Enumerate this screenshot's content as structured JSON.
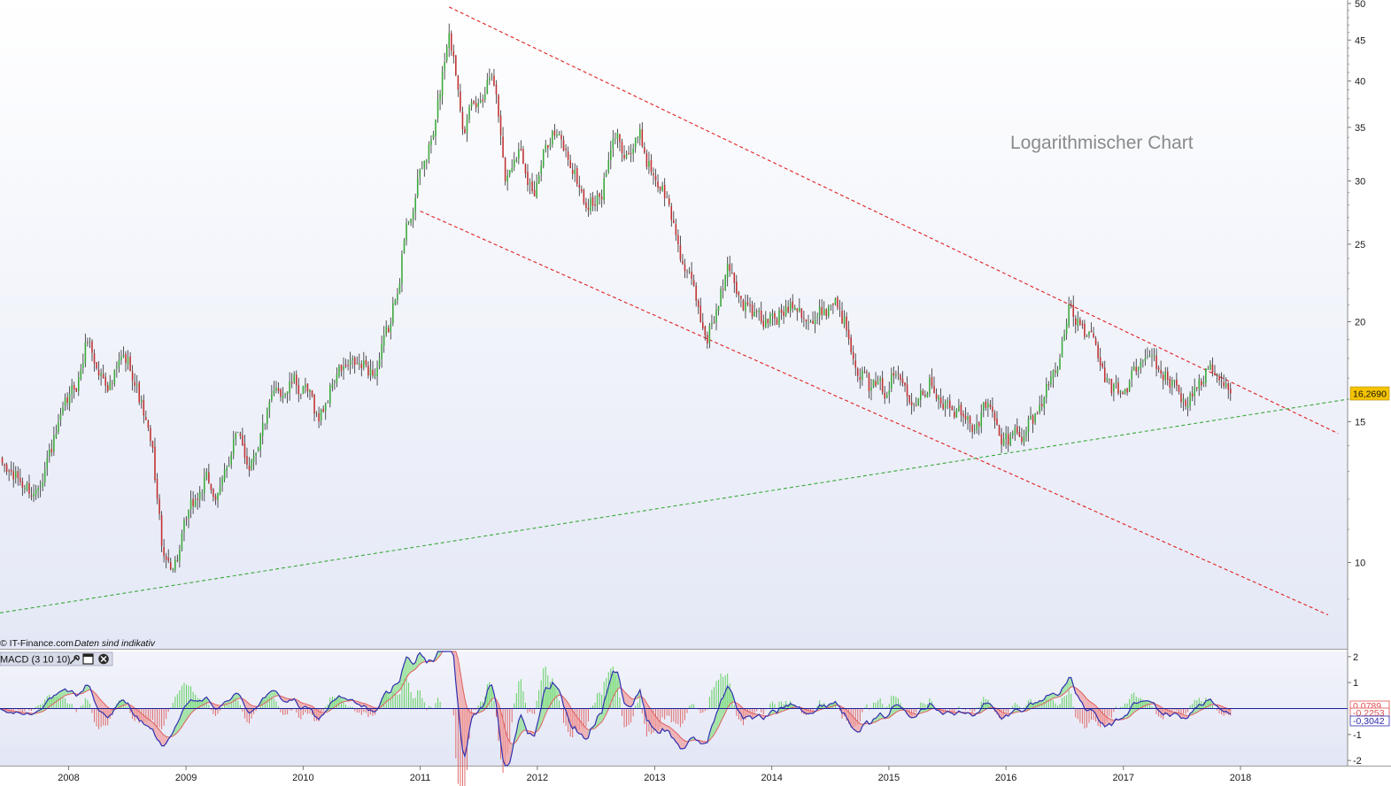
{
  "chart_data": [
    {
      "type": "candlestick",
      "scale": "log",
      "annotation": "Logarithmischer Chart",
      "credit_text": "© IT-Finance.com",
      "credit_note": "Daten sind indikativ",
      "last_price_label": "16,2690",
      "last_price": 16.269,
      "ylim": [
        7.8,
        50.5
      ],
      "xlim": [
        "2007-06-01",
        "2018-12-01"
      ],
      "y_ticks": [
        {
          "value": 10,
          "label": "10"
        },
        {
          "value": 15,
          "label": "15"
        },
        {
          "value": 20,
          "label": "20"
        },
        {
          "value": 25,
          "label": "25"
        },
        {
          "value": 30,
          "label": "30"
        },
        {
          "value": 35,
          "label": "35"
        },
        {
          "value": 40,
          "label": "40"
        },
        {
          "value": 45,
          "label": "45"
        },
        {
          "value": 50,
          "label": "50"
        }
      ],
      "x_ticks": [
        {
          "date": "2008-01-01",
          "label": "2008"
        },
        {
          "date": "2009-01-01",
          "label": "2009"
        },
        {
          "date": "2010-01-01",
          "label": "2010"
        },
        {
          "date": "2011-01-01",
          "label": "2011"
        },
        {
          "date": "2012-01-01",
          "label": "2012"
        },
        {
          "date": "2013-01-01",
          "label": "2013"
        },
        {
          "date": "2014-01-01",
          "label": "2014"
        },
        {
          "date": "2015-01-01",
          "label": "2015"
        },
        {
          "date": "2016-01-01",
          "label": "2016"
        },
        {
          "date": "2017-01-01",
          "label": "2017"
        },
        {
          "date": "2018-01-01",
          "label": "2018"
        }
      ],
      "price_path": [
        [
          "2007-06-01",
          13.2
        ],
        [
          "2007-08-15",
          12.5
        ],
        [
          "2007-09-15",
          12.2
        ],
        [
          "2007-10-20",
          13.4
        ],
        [
          "2007-12-01",
          14.6
        ],
        [
          "2008-02-01",
          17.0
        ],
        [
          "2008-03-01",
          19.2
        ],
        [
          "2008-04-01",
          17.3
        ],
        [
          "2008-05-15",
          16.8
        ],
        [
          "2008-06-15",
          17.8
        ],
        [
          "2008-07-15",
          17.6
        ],
        [
          "2008-08-20",
          15.5
        ],
        [
          "2008-09-20",
          13.4
        ],
        [
          "2008-10-25",
          9.9
        ],
        [
          "2008-12-01",
          10.1
        ],
        [
          "2009-01-15",
          11.5
        ],
        [
          "2009-03-01",
          12.6
        ],
        [
          "2009-04-15",
          12.0
        ],
        [
          "2009-06-01",
          14.5
        ],
        [
          "2009-07-15",
          13.3
        ],
        [
          "2009-09-01",
          15.0
        ],
        [
          "2009-10-15",
          16.3
        ],
        [
          "2009-12-01",
          16.8
        ],
        [
          "2010-01-20",
          16.0
        ],
        [
          "2010-02-20",
          15.1
        ],
        [
          "2010-04-15",
          17.3
        ],
        [
          "2010-06-15",
          17.5
        ],
        [
          "2010-08-15",
          17.4
        ],
        [
          "2010-10-01",
          19.7
        ],
        [
          "2010-11-15",
          25.8
        ],
        [
          "2011-01-01",
          30.5
        ],
        [
          "2011-02-15",
          34.5
        ],
        [
          "2011-04-01",
          47.0
        ],
        [
          "2011-05-15",
          36.0
        ],
        [
          "2011-07-01",
          37.0
        ],
        [
          "2011-08-15",
          42.5
        ],
        [
          "2011-09-25",
          30.0
        ],
        [
          "2011-11-01",
          33.5
        ],
        [
          "2011-12-25",
          29.0
        ],
        [
          "2012-02-15",
          35.0
        ],
        [
          "2012-04-15",
          31.5
        ],
        [
          "2012-06-01",
          28.0
        ],
        [
          "2012-07-15",
          28.5
        ],
        [
          "2012-09-01",
          34.0
        ],
        [
          "2012-10-15",
          32.8
        ],
        [
          "2012-11-15",
          33.8
        ],
        [
          "2012-12-15",
          31.5
        ],
        [
          "2013-02-01",
          29.0
        ],
        [
          "2013-04-10",
          23.0
        ],
        [
          "2013-06-10",
          19.2
        ],
        [
          "2013-07-20",
          21.0
        ],
        [
          "2013-08-20",
          23.5
        ],
        [
          "2013-10-01",
          21.3
        ],
        [
          "2013-12-01",
          19.8
        ],
        [
          "2014-02-01",
          20.5
        ],
        [
          "2014-03-15",
          21.6
        ],
        [
          "2014-05-15",
          19.8
        ],
        [
          "2014-06-15",
          20.8
        ],
        [
          "2014-07-20",
          21.5
        ],
        [
          "2014-09-15",
          18.5
        ],
        [
          "2014-11-01",
          16.5
        ],
        [
          "2014-12-15",
          16.3
        ],
        [
          "2015-01-15",
          17.2
        ],
        [
          "2015-03-15",
          16.4
        ],
        [
          "2015-05-15",
          17.0
        ],
        [
          "2015-07-15",
          15.5
        ],
        [
          "2015-09-15",
          14.8
        ],
        [
          "2015-11-01",
          15.8
        ],
        [
          "2015-12-20",
          14.0
        ],
        [
          "2016-02-01",
          14.5
        ],
        [
          "2016-04-01",
          15.2
        ],
        [
          "2016-06-01",
          17.5
        ],
        [
          "2016-07-15",
          20.5
        ],
        [
          "2016-09-15",
          19.2
        ],
        [
          "2016-11-15",
          16.5
        ],
        [
          "2016-12-20",
          16.2
        ],
        [
          "2017-02-15",
          17.5
        ],
        [
          "2017-04-01",
          18.0
        ],
        [
          "2017-05-15",
          17.0
        ],
        [
          "2017-07-15",
          16.0
        ],
        [
          "2017-08-15",
          16.5
        ],
        [
          "2017-09-20",
          17.4
        ],
        [
          "2017-11-01",
          16.8
        ],
        [
          "2017-12-01",
          16.269
        ]
      ],
      "trendlines": [
        {
          "name": "upper-resistance",
          "color": "#e02020",
          "dash": true,
          "points": [
            [
              "2011-04-01",
              49.5
            ],
            [
              "2018-11-01",
              14.5
            ]
          ]
        },
        {
          "name": "lower-channel",
          "color": "#e02020",
          "dash": true,
          "points": [
            [
              "2011-01-01",
              27.5
            ],
            [
              "2018-10-01",
              8.6
            ]
          ]
        },
        {
          "name": "long-term-support",
          "color": "#3aa83a",
          "dash": true,
          "points": [
            [
              "2007-06-01",
              8.65
            ],
            [
              "2018-12-01",
              16.0
            ]
          ]
        }
      ]
    },
    {
      "type": "macd",
      "label": "MACD (3 10 10)",
      "ylim": [
        -2.2,
        2.2
      ],
      "y_ticks": [
        {
          "value": 2,
          "label": "2"
        },
        {
          "value": 1,
          "label": "1"
        },
        {
          "value": -1,
          "label": "-1"
        },
        {
          "value": -2,
          "label": "-2"
        }
      ],
      "value_labels": [
        {
          "label": "0,0789",
          "value": 0.0789,
          "color": "#e05050"
        },
        {
          "label": "-0,2253",
          "value": -0.2253,
          "color": "#e05050"
        },
        {
          "label": "-0,3042",
          "value": -0.3042,
          "color": "#2a2ab0"
        }
      ]
    }
  ],
  "colors": {
    "up_candle": "#3aa83a",
    "down_candle": "#c03030",
    "wick": "#2a2a2a",
    "macd_line": "#3030b0",
    "signal_line": "#e06060",
    "price_flag": "#f5c400",
    "bg_top": "#ffffff",
    "bg_bottom": "#e6e9f6"
  },
  "toolbar": {
    "icons": [
      "wrench-icon",
      "window-icon",
      "close-icon"
    ]
  }
}
